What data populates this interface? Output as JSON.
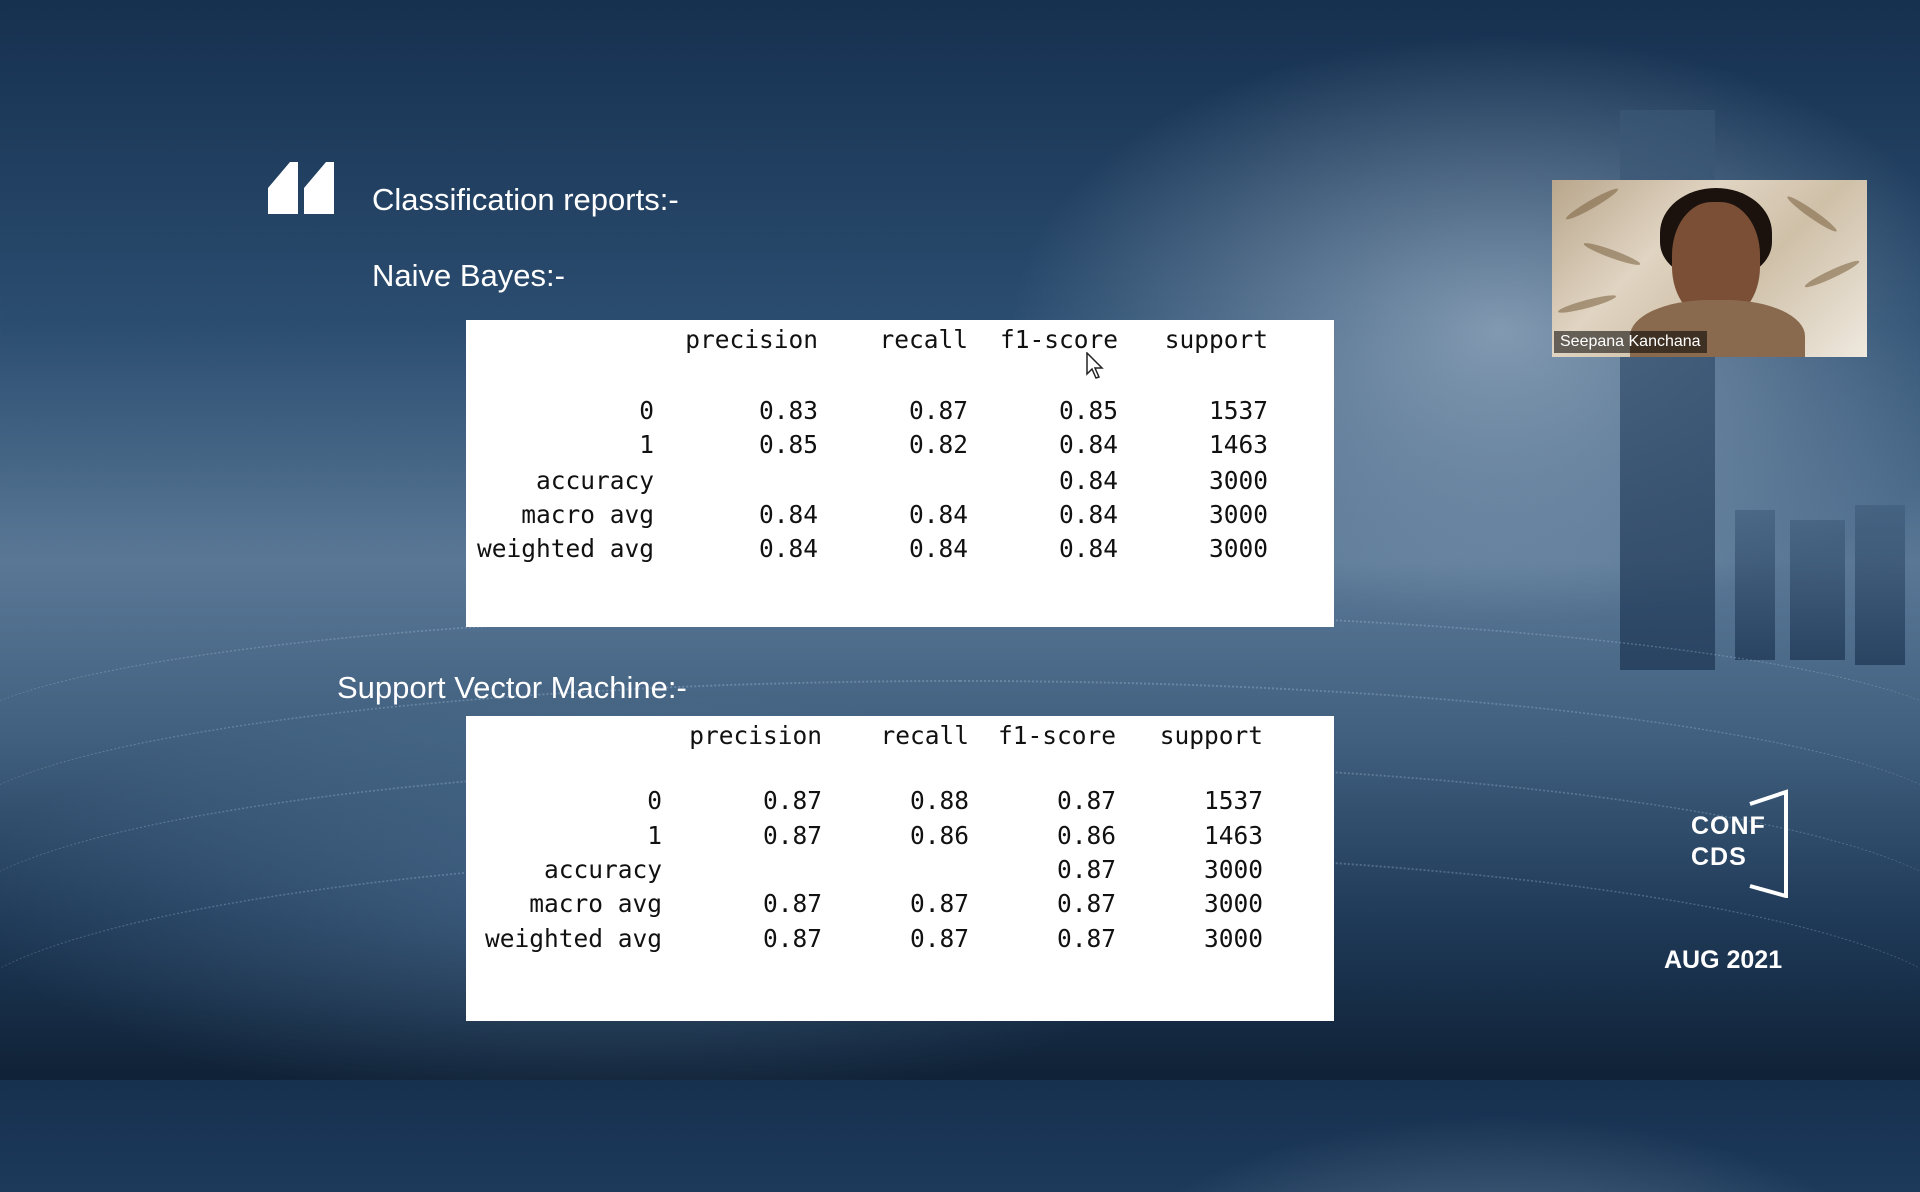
{
  "slide": {
    "heading": "Classification reports:-",
    "naive_bayes_label": "Naive Bayes:-",
    "svm_label": "Support  Vector Machine:-",
    "logo_line1": "CONF",
    "logo_line2": "CDS",
    "date": "AUG 2021"
  },
  "video": {
    "participant_name": "Seepana Kanchana"
  },
  "naive_bayes": {
    "header": [
      "precision",
      "recall",
      "f1-score",
      "support"
    ],
    "rows": [
      {
        "label": "0",
        "precision": "0.83",
        "recall": "0.87",
        "f1": "0.85",
        "support": "1537"
      },
      {
        "label": "1",
        "precision": "0.85",
        "recall": "0.82",
        "f1": "0.84",
        "support": "1463"
      },
      {
        "label": "accuracy",
        "precision": "",
        "recall": "",
        "f1": "0.84",
        "support": "3000"
      },
      {
        "label": "macro avg",
        "precision": "0.84",
        "recall": "0.84",
        "f1": "0.84",
        "support": "3000"
      },
      {
        "label": "weighted avg",
        "precision": "0.84",
        "recall": "0.84",
        "f1": "0.84",
        "support": "3000"
      }
    ]
  },
  "svm": {
    "header": [
      "precision",
      "recall",
      "f1-score",
      "support"
    ],
    "rows": [
      {
        "label": "0",
        "precision": "0.87",
        "recall": "0.88",
        "f1": "0.87",
        "support": "1537"
      },
      {
        "label": "1",
        "precision": "0.87",
        "recall": "0.86",
        "f1": "0.86",
        "support": "1463"
      },
      {
        "label": "accuracy",
        "precision": "",
        "recall": "",
        "f1": "0.87",
        "support": "3000"
      },
      {
        "label": "macro avg",
        "precision": "0.87",
        "recall": "0.87",
        "f1": "0.87",
        "support": "3000"
      },
      {
        "label": "weighted avg",
        "precision": "0.87",
        "recall": "0.87",
        "f1": "0.87",
        "support": "3000"
      }
    ]
  },
  "colors": {
    "text_on_slide": "#ffffff",
    "table_bg": "#ffffff",
    "table_text": "#111111"
  }
}
